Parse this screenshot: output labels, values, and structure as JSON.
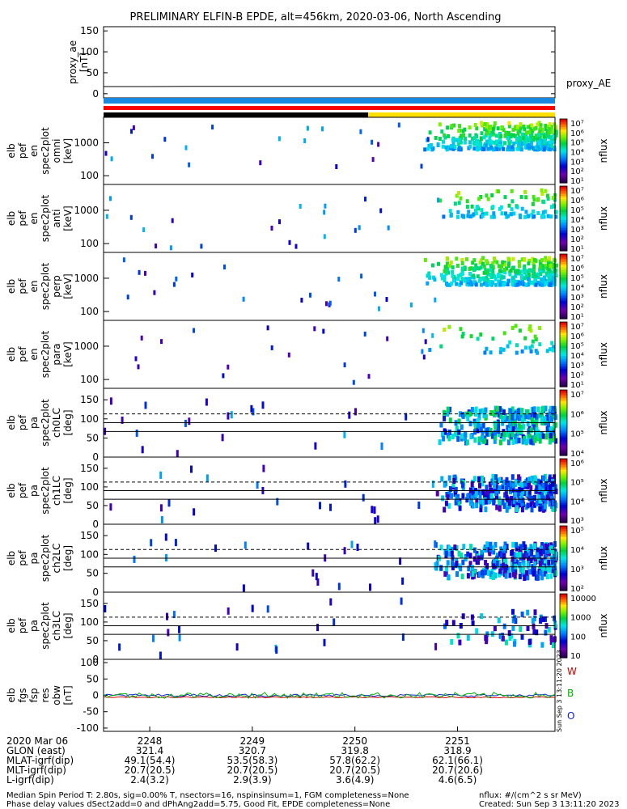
{
  "title": "PRELIMINARY ELFIN-B EPDE, alt=456km, 2020-03-06, North Ascending",
  "colors": {
    "band1": "#1a8ae0",
    "band2": "#ff0000",
    "band3a": "#000000",
    "band3b": "#ffe000",
    "line": "#000000"
  },
  "chart_data": [
    {
      "type": "line",
      "panel": "proxy_ae",
      "ylabel": [
        "proxy_ae",
        "[nT]"
      ],
      "yticks": [
        "150",
        "100",
        "50",
        "0"
      ],
      "ylim": [
        -10,
        160
      ],
      "label_right": "proxy_AE",
      "x": [
        2247.55,
        2248,
        2248.4,
        2251.95
      ],
      "series": [
        {
          "values": [
            17,
            17,
            17.5,
            17.5
          ]
        }
      ]
    },
    {
      "type": "heatmap",
      "panel": "pef_en_spec2plot_omni",
      "ylabel": [
        "elb",
        "pef",
        "en",
        "spec2plot",
        "omni",
        "[keV]"
      ],
      "yticks": [
        "1000",
        "100"
      ],
      "scale": "log",
      "colorbar": {
        "label": "nflux",
        "ticks": [
          "10⁷",
          "10⁶",
          "10⁵",
          "10⁴",
          "10³",
          "10²",
          "10¹"
        ]
      },
      "legend_side": "right"
    },
    {
      "type": "heatmap",
      "panel": "pef_en_spec2plot_anti",
      "ylabel": [
        "elb",
        "pef",
        "en",
        "spec2plot",
        "anti",
        "[keV]"
      ],
      "yticks": [
        "1000",
        "100"
      ],
      "scale": "log",
      "colorbar": {
        "label": "nflux",
        "ticks": [
          "10⁷",
          "10⁶",
          "10⁵",
          "10⁴",
          "10³",
          "10²",
          "10¹"
        ]
      }
    },
    {
      "type": "heatmap",
      "panel": "pef_en_spec2plot_perp",
      "ylabel": [
        "elb",
        "pef",
        "en",
        "spec2plot",
        "perp",
        "[keV]"
      ],
      "yticks": [
        "1000",
        "100"
      ],
      "scale": "log",
      "colorbar": {
        "label": "nflux",
        "ticks": [
          "10⁷",
          "10⁶",
          "10⁵",
          "10⁴",
          "10³",
          "10²",
          "10¹"
        ]
      }
    },
    {
      "type": "heatmap",
      "panel": "pef_en_spec2plot_para",
      "ylabel": [
        "elb",
        "pef",
        "en",
        "spec2plot",
        "para",
        "[keV]"
      ],
      "yticks": [
        "1000",
        "100"
      ],
      "scale": "log",
      "colorbar": {
        "label": "nflux",
        "ticks": [
          "10⁷",
          "10⁶",
          "10⁵",
          "10⁴",
          "10³",
          "10²",
          "10¹"
        ]
      }
    },
    {
      "type": "heatmap",
      "panel": "pef_pa_spec2plot_ch0LC",
      "ylabel": [
        "elb",
        "pef",
        "pa",
        "spec2plot",
        "ch0LC",
        "[deg]"
      ],
      "yticks": [
        "150",
        "100",
        "50",
        "0"
      ],
      "ylim": [
        0,
        180
      ],
      "lines": {
        "dashed": 113,
        "solid": [
          90,
          67
        ]
      },
      "colorbar": {
        "label": "nflux",
        "ticks": [
          "10⁷",
          "10⁶",
          "10⁵",
          "10⁴"
        ]
      }
    },
    {
      "type": "heatmap",
      "panel": "pef_pa_spec2plot_ch1LC",
      "ylabel": [
        "elb",
        "pef",
        "pa",
        "spec2plot",
        "ch1LC",
        "[deg]"
      ],
      "yticks": [
        "150",
        "100",
        "50",
        "0"
      ],
      "ylim": [
        0,
        180
      ],
      "lines": {
        "dashed": 113,
        "solid": [
          90,
          67
        ]
      },
      "colorbar": {
        "label": "nflux",
        "ticks": [
          "10⁶",
          "10⁵",
          "10⁴",
          "10³"
        ]
      }
    },
    {
      "type": "heatmap",
      "panel": "pef_pa_spec2plot_ch2LC",
      "ylabel": [
        "elb",
        "pef",
        "pa",
        "spec2plot",
        "ch2LC",
        "[deg]"
      ],
      "yticks": [
        "150",
        "100",
        "50",
        "0"
      ],
      "ylim": [
        0,
        180
      ],
      "lines": {
        "dashed": 113,
        "solid": [
          90,
          67
        ]
      },
      "colorbar": {
        "label": "nflux",
        "ticks": [
          "10⁵",
          "10⁴",
          "10³",
          "10²"
        ]
      }
    },
    {
      "type": "heatmap",
      "panel": "pef_pa_spec2plot_ch3LC",
      "ylabel": [
        "elb",
        "pef",
        "pa",
        "spec2plot",
        "ch3LC",
        "[deg]"
      ],
      "yticks": [
        "150",
        "100",
        "50",
        "0"
      ],
      "ylim": [
        0,
        180
      ],
      "lines": {
        "dashed": 113,
        "solid": [
          90,
          67
        ]
      },
      "colorbar": {
        "label": "nflux",
        "ticks": [
          "10000",
          "1000",
          "100",
          "10"
        ]
      }
    },
    {
      "type": "line",
      "panel": "fgs_fsp_res_obw",
      "ylabel": [
        "elb",
        "fgs",
        "fsp",
        "res",
        "obw",
        "[nT]"
      ],
      "yticks": [
        "100",
        "50",
        "0",
        "-50",
        "-100"
      ],
      "ylim": [
        -110,
        110
      ],
      "legend": [
        "W",
        "B",
        "O"
      ],
      "series_colors": [
        "#d00000",
        "#00b000",
        "#1020d0"
      ]
    }
  ],
  "axis": {
    "date": "2020 Mar 06",
    "ticks": [
      "2248",
      "2249",
      "2250",
      "2251"
    ],
    "rows": [
      {
        "label": "GLON (east)",
        "values": [
          "321.4",
          "320.7",
          "319.8",
          "318.9"
        ]
      },
      {
        "label": "MLAT-igrf(dip)",
        "values": [
          "49.1(54.4)",
          "53.5(58.3)",
          "57.8(62.2)",
          "62.1(66.1)"
        ]
      },
      {
        "label": "MLT-igrf(dip)",
        "values": [
          "20.7(20.5)",
          "20.7(20.5)",
          "20.7(20.5)",
          "20.7(20.6)"
        ]
      },
      {
        "label": "L-igrf(dip)",
        "values": [
          "2.4(3.2)",
          "2.9(3.9)",
          "3.6(4.9)",
          "4.6(6.5)"
        ]
      }
    ]
  },
  "footer": {
    "line1": "Median Spin Period T: 2.80s, sig=0.00% T, nsectors=16, nspinsinsum=1, FGM completeness=None",
    "line2": "Phase delay values dSect2add=0 and dPhAng2add=5.75, Good Fit, EPDE completeness=None",
    "units": "nflux: #/(cm^2 s sr MeV)",
    "created": "Created: Sun Sep  3 13:11:20 2023",
    "stamp": "Sun Sep  3 13:11:20 2023"
  }
}
